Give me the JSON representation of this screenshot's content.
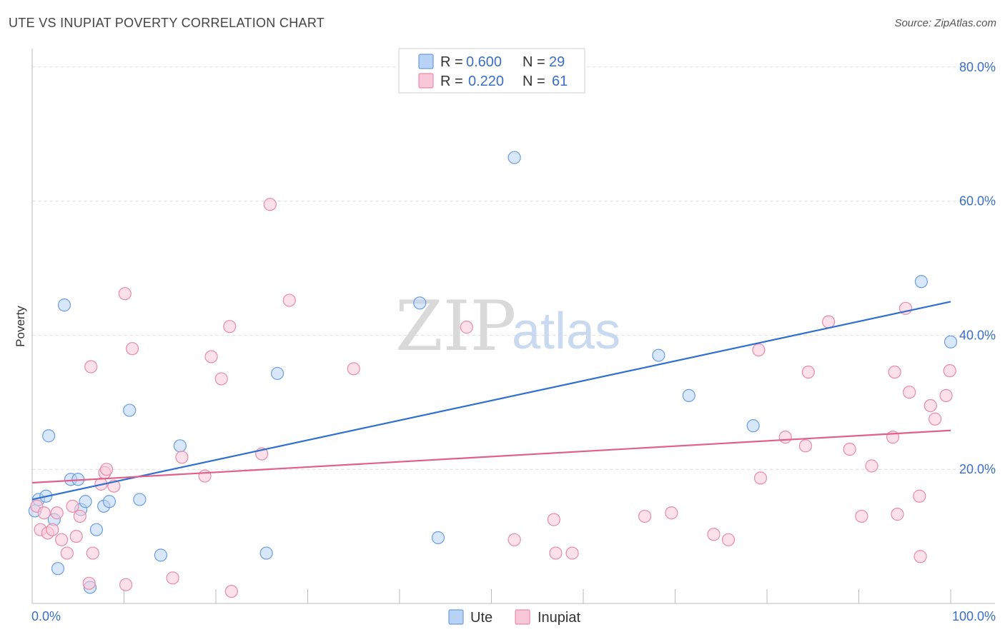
{
  "header": {
    "title": "UTE VS INUPIAT POVERTY CORRELATION CHART",
    "source": "Source: ZipAtlas.com"
  },
  "watermark": {
    "zip": "ZIP",
    "atlas": "atlas"
  },
  "legend": {
    "rows": [
      {
        "r_label": "R =",
        "r_value": "0.600",
        "n_label": "N =",
        "n_value": "29",
        "color": "#6a9de0",
        "fill": "#b9d3f7"
      },
      {
        "r_label": "R =",
        "r_value": "0.220",
        "n_label": "N =",
        "n_value": "61",
        "color": "#e88aa8",
        "fill": "#f9c8d8"
      }
    ]
  },
  "bottom_legend": [
    {
      "label": "Ute",
      "color": "#6a9de0",
      "fill": "#b9d3f7"
    },
    {
      "label": "Inupiat",
      "color": "#e88aa8",
      "fill": "#f9c8d8"
    }
  ],
  "chart_data": {
    "type": "scatter",
    "title": "UTE VS INUPIAT POVERTY CORRELATION CHART",
    "xlabel": "",
    "ylabel": "Poverty",
    "xlim": [
      0,
      100
    ],
    "ylim": [
      0,
      82
    ],
    "x_tick_labels": [
      {
        "value": 0,
        "label": "0.0%"
      },
      {
        "value": 100,
        "label": "100.0%"
      }
    ],
    "y_tick_labels": [
      {
        "value": 20,
        "label": "20.0%"
      },
      {
        "value": 40,
        "label": "40.0%"
      },
      {
        "value": 60,
        "label": "60.0%"
      },
      {
        "value": 80,
        "label": "80.0%"
      }
    ],
    "y_gridlines": [
      20,
      40,
      60,
      80
    ],
    "x_ticks": [
      0,
      10,
      20,
      30,
      40,
      50,
      60,
      70,
      80,
      90,
      100
    ],
    "legend_position": "top-center",
    "series": [
      {
        "name": "Ute",
        "stroke": "#6a9de0",
        "fill": "#b9d3f7",
        "line_color": "#2f6fcf",
        "trend": {
          "x1": 0,
          "y1": 15.5,
          "x2": 100,
          "y2": 45
        },
        "points": [
          [
            0.3,
            13.8
          ],
          [
            0.7,
            15.5
          ],
          [
            1.5,
            16.0
          ],
          [
            1.8,
            25.0
          ],
          [
            2.4,
            12.5
          ],
          [
            2.8,
            5.2
          ],
          [
            3.5,
            44.5
          ],
          [
            4.2,
            18.5
          ],
          [
            5.0,
            18.5
          ],
          [
            5.3,
            14.0
          ],
          [
            5.8,
            15.2
          ],
          [
            6.3,
            2.4
          ],
          [
            7.0,
            11.0
          ],
          [
            7.8,
            14.5
          ],
          [
            8.4,
            15.2
          ],
          [
            10.6,
            28.8
          ],
          [
            11.7,
            15.5
          ],
          [
            14.0,
            7.2
          ],
          [
            16.1,
            23.5
          ],
          [
            25.5,
            7.5
          ],
          [
            26.7,
            34.3
          ],
          [
            42.2,
            44.8
          ],
          [
            44.2,
            9.8
          ],
          [
            52.5,
            66.5
          ],
          [
            68.2,
            37.0
          ],
          [
            71.5,
            31.0
          ],
          [
            78.5,
            26.5
          ],
          [
            96.8,
            48.0
          ],
          [
            100.0,
            39.0
          ]
        ]
      },
      {
        "name": "Inupiat",
        "stroke": "#e88aa8",
        "fill": "#f9c8d8",
        "line_color": "#e0608a",
        "trend": {
          "x1": 0,
          "y1": 18.0,
          "x2": 100,
          "y2": 25.8
        },
        "points": [
          [
            0.5,
            14.5
          ],
          [
            0.9,
            11.0
          ],
          [
            1.3,
            13.5
          ],
          [
            1.7,
            10.5
          ],
          [
            2.2,
            11.0
          ],
          [
            2.7,
            13.5
          ],
          [
            3.2,
            9.5
          ],
          [
            3.8,
            7.5
          ],
          [
            4.4,
            14.5
          ],
          [
            4.8,
            10.0
          ],
          [
            5.2,
            13.0
          ],
          [
            6.2,
            3.0
          ],
          [
            6.4,
            35.3
          ],
          [
            6.6,
            7.5
          ],
          [
            7.5,
            17.8
          ],
          [
            7.9,
            19.5
          ],
          [
            8.1,
            20.0
          ],
          [
            8.9,
            17.5
          ],
          [
            10.1,
            46.2
          ],
          [
            10.2,
            2.8
          ],
          [
            10.9,
            38.0
          ],
          [
            15.3,
            3.8
          ],
          [
            16.3,
            21.8
          ],
          [
            18.8,
            19.0
          ],
          [
            19.5,
            36.8
          ],
          [
            20.6,
            33.5
          ],
          [
            21.5,
            41.3
          ],
          [
            21.7,
            1.8
          ],
          [
            25.0,
            22.3
          ],
          [
            25.9,
            59.5
          ],
          [
            28.0,
            45.2
          ],
          [
            35.0,
            35.0
          ],
          [
            47.3,
            41.2
          ],
          [
            52.5,
            9.5
          ],
          [
            56.8,
            12.5
          ],
          [
            57.0,
            7.5
          ],
          [
            58.8,
            7.5
          ],
          [
            66.7,
            13.0
          ],
          [
            69.6,
            13.5
          ],
          [
            74.2,
            10.3
          ],
          [
            75.8,
            9.5
          ],
          [
            79.1,
            37.8
          ],
          [
            79.3,
            18.7
          ],
          [
            82.0,
            24.8
          ],
          [
            84.2,
            23.5
          ],
          [
            84.5,
            34.5
          ],
          [
            86.7,
            42.0
          ],
          [
            89.0,
            23.0
          ],
          [
            90.3,
            13.0
          ],
          [
            91.4,
            20.5
          ],
          [
            93.7,
            24.8
          ],
          [
            93.9,
            34.5
          ],
          [
            94.2,
            13.3
          ],
          [
            95.1,
            44.0
          ],
          [
            95.5,
            31.5
          ],
          [
            96.6,
            16.0
          ],
          [
            96.7,
            7.0
          ],
          [
            97.8,
            29.5
          ],
          [
            98.3,
            27.5
          ],
          [
            99.5,
            31.0
          ],
          [
            99.9,
            34.7
          ]
        ]
      }
    ]
  }
}
